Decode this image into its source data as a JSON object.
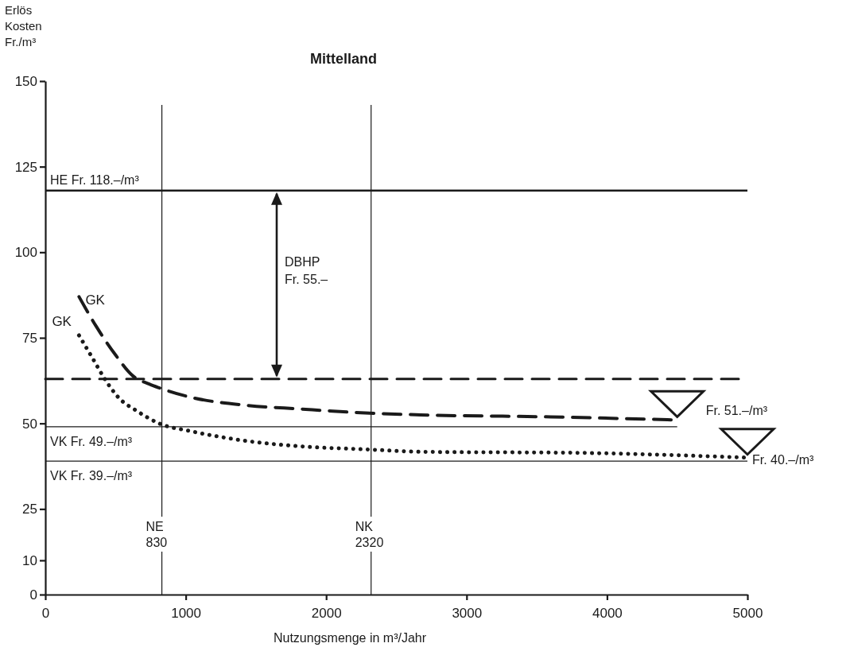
{
  "chart_data": {
    "type": "line",
    "title": "Mittelland",
    "xlabel": "Nutzungsmenge in m³/Jahr",
    "ylabel": "Erlös Kosten Fr./m³",
    "xlim": [
      0,
      5000
    ],
    "xticks": [
      0,
      1000,
      2000,
      3000,
      4000,
      5000
    ],
    "ylim": [
      0,
      150
    ],
    "yticks": [
      0,
      10,
      25,
      50,
      75,
      100,
      125,
      150
    ],
    "grid": false,
    "series": [
      {
        "color": "#1a1a1a",
        "line_style": "solid",
        "x": [
          0,
          5000
        ],
        "values": [
          118,
          118
        ]
      },
      {
        "color": "#1a1a1a",
        "line_style": "dashed",
        "x": [
          0,
          4960
        ],
        "values": [
          63,
          63
        ]
      },
      {
        "color": "#1a1a1a",
        "line_style": "solid",
        "x": [
          0,
          4500
        ],
        "values": [
          49,
          49
        ]
      },
      {
        "color": "#1a1a1a",
        "line_style": "solid",
        "x": [
          0,
          5000
        ],
        "values": [
          39,
          39
        ]
      },
      {
        "name": "GK",
        "color": "#1a1a1a",
        "line_style": "dashed",
        "x": [
          240,
          360,
          500,
          620,
          740,
          810,
          1040,
          1430,
          1820,
          2210,
          2670,
          3600,
          4500
        ],
        "values": [
          87,
          78.5,
          70,
          64,
          61.5,
          60.4,
          57.6,
          55.3,
          54.2,
          53.2,
          52.5,
          51.9,
          51
        ]
      },
      {
        "name": "GK",
        "color": "#1a1a1a",
        "line_style": "dotted",
        "x": [
          240,
          340,
          420,
          520,
          650,
          810,
          1040,
          1430,
          1820,
          2290,
          2680,
          3790,
          5000
        ],
        "values": [
          75.7,
          68.8,
          63.2,
          57.6,
          53.7,
          50,
          47.7,
          44.9,
          43.3,
          42.4,
          41.7,
          41.4,
          40
        ]
      }
    ],
    "ref_lines": [
      {
        "axis": "x",
        "value": 830,
        "label": "NE 830"
      },
      {
        "axis": "x",
        "value": 2320,
        "label": "NK 2320"
      }
    ],
    "annotations": [
      {
        "text": "HE  Fr. 118.–/m³",
        "x": 0,
        "y": 118
      },
      {
        "text": "VK  Fr. 49.–/m³",
        "x": 0,
        "y": 49
      },
      {
        "text": "VK  Fr. 39.–/m³",
        "x": 0,
        "y": 39
      },
      {
        "text": "Fr. 51.–/m³",
        "x": 4500,
        "y": 51
      },
      {
        "text": "Fr. 40.–/m³",
        "x": 5000,
        "y": 40
      },
      "DBHP Fr. 55.–"
    ]
  }
}
